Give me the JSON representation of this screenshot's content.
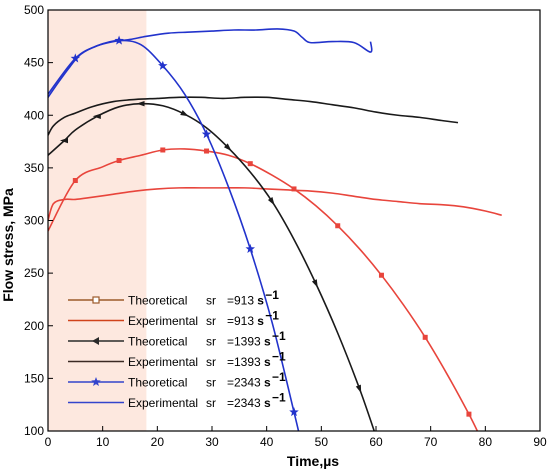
{
  "chart_data": {
    "type": "line",
    "xlabel": "Time,",
    "xlabel_unit": "µs",
    "ylabel": "Flow stress, MPa",
    "xlim": [
      0,
      90
    ],
    "ylim": [
      100,
      500
    ],
    "xticks": [
      0,
      10,
      20,
      30,
      40,
      50,
      60,
      70,
      80,
      90
    ],
    "yticks": [
      100,
      150,
      200,
      250,
      300,
      350,
      400,
      450,
      500
    ],
    "grid": false,
    "legend_position": "bottom-left",
    "shaded_region": {
      "x": [
        0,
        18
      ],
      "color": "#fde8df"
    },
    "series": [
      {
        "name": "Theoretical",
        "sr_value": "=913",
        "unit": "s",
        "exponent": "−1",
        "color": "#e8453c",
        "marker": "square",
        "style": "theoretical",
        "x": [
          0,
          5,
          10,
          13,
          17,
          21,
          25,
          29,
          33,
          37,
          41,
          45,
          49,
          53,
          57,
          61,
          65,
          69,
          73,
          77,
          79
        ],
        "y": [
          290,
          338,
          351,
          357,
          362,
          367,
          368,
          366,
          362,
          354,
          343,
          330,
          314,
          295,
          273,
          248,
          220,
          189,
          154,
          116,
          95
        ]
      },
      {
        "name": "Experimental",
        "sr_value": "=913",
        "unit": "s",
        "exponent": "−1",
        "color": "#e8453c",
        "marker": "none",
        "style": "experimental",
        "x": [
          0,
          1,
          3,
          5,
          8,
          12,
          16,
          20,
          24,
          28,
          32,
          36,
          40,
          44,
          48,
          52,
          56,
          60,
          64,
          68,
          72,
          76,
          80,
          83
        ],
        "y": [
          300,
          316,
          320,
          320,
          322,
          325,
          328,
          330,
          331,
          331,
          331,
          331,
          330,
          329,
          328,
          326,
          323,
          320,
          318,
          316,
          315,
          313,
          309,
          305
        ]
      },
      {
        "name": "Theoretical",
        "sr_value": "=1393",
        "unit": "s",
        "exponent": "−1",
        "color": "#1a1a1a",
        "marker": "triangle-left",
        "style": "theoretical",
        "x": [
          0,
          3,
          5,
          9,
          13,
          17,
          21,
          25,
          29,
          33,
          37,
          41,
          45,
          49,
          53,
          57,
          60
        ],
        "y": [
          362,
          376,
          386,
          399,
          408,
          411,
          409,
          401,
          388,
          369,
          346,
          318,
          282,
          240,
          193,
          140,
          95
        ]
      },
      {
        "name": "Experimental",
        "sr_value": "=1393",
        "unit": "s",
        "exponent": "−1",
        "color": "#1a1a1a",
        "marker": "none",
        "style": "experimental",
        "x": [
          0,
          1,
          3,
          5,
          8,
          12,
          16,
          20,
          24,
          28,
          32,
          36,
          40,
          44,
          48,
          52,
          56,
          60,
          64,
          68,
          72,
          75
        ],
        "y": [
          381,
          390,
          398,
          402,
          408,
          413,
          415,
          416,
          417,
          417,
          416,
          417,
          417,
          415,
          413,
          410,
          407,
          403,
          400,
          398,
          395,
          393
        ]
      },
      {
        "name": "Theoretical",
        "sr_value": "=2343",
        "unit": "s",
        "exponent": "−1",
        "color": "#2233cc",
        "marker": "star",
        "style": "theoretical",
        "x": [
          0,
          5,
          9,
          13,
          17,
          21,
          25,
          29,
          33,
          37,
          41,
          45,
          46
        ],
        "y": [
          420,
          454,
          466,
          471,
          467,
          447,
          420,
          382,
          332,
          273,
          203,
          118,
          96
        ]
      },
      {
        "name": "Experimental",
        "sr_value": "=2343",
        "unit": "s",
        "exponent": "−1",
        "color": "#2233cc",
        "marker": "none",
        "style": "experimental",
        "x": [
          0,
          2,
          4,
          6,
          9,
          12,
          15,
          18,
          22,
          26,
          30,
          34,
          38,
          42,
          45,
          46.5,
          48,
          52,
          56,
          59,
          59
        ],
        "y": [
          417,
          432,
          446,
          458,
          466,
          470,
          472,
          475,
          478,
          479,
          480,
          481,
          481,
          482,
          480,
          474,
          469,
          470,
          469,
          460,
          470
        ]
      }
    ]
  },
  "legend": {
    "sr_label": "sr",
    "entries": [
      {
        "label": "Theoretical",
        "value": "=913",
        "unit": "s",
        "exp": "−1"
      },
      {
        "label": "Experimental",
        "value": "=913",
        "unit": "s",
        "exp": "−1"
      },
      {
        "label": "Theoretical",
        "value": "=1393",
        "unit": "s",
        "exp": "−1"
      },
      {
        "label": "Experimental",
        "value": "=1393",
        "unit": "s",
        "exp": "−1"
      },
      {
        "label": "Theoretical",
        "value": "=2343",
        "unit": "s",
        "exp": "−1"
      },
      {
        "label": "Experimental",
        "value": "=2343",
        "unit": "s",
        "exp": "−1"
      }
    ],
    "line_colors": [
      "#9c5a2a",
      "#d0431b",
      "#2a2a2a",
      "#3a2a24",
      "#3344cc",
      "#3344cc"
    ],
    "markers": [
      "square-open",
      "none",
      "triangle-left",
      "none",
      "star",
      "none"
    ]
  }
}
